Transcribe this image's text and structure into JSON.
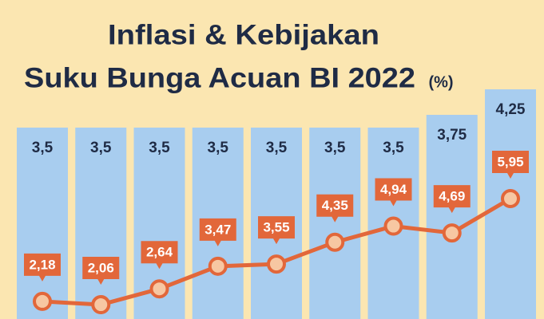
{
  "chart_data": {
    "type": "bar",
    "title_lines": [
      "Inflasi & Kebijakan",
      "Suku Bunga Acuan BI 2022"
    ],
    "unit": "(%)",
    "categories": [
      null,
      null,
      null,
      null,
      null,
      null,
      null,
      null,
      null
    ],
    "series": [
      {
        "type": "bar",
        "color": "#a8cdef",
        "values": [
          3.5,
          3.5,
          3.5,
          3.5,
          3.5,
          3.5,
          3.5,
          3.75,
          4.25
        ],
        "value_labels": [
          "3,5",
          "3,5",
          "3,5",
          "3,5",
          "3,5",
          "3,5",
          "3,5",
          "3,75",
          "4,25"
        ]
      },
      {
        "type": "line",
        "color": "#e2673a",
        "values": [
          2.18,
          2.06,
          2.64,
          3.47,
          3.55,
          4.35,
          4.94,
          4.69,
          5.95
        ],
        "value_labels": [
          "2,18",
          "2,06",
          "2,64",
          "3,47",
          "3,55",
          "4,35",
          "4,94",
          "4,69",
          "5,95"
        ]
      }
    ]
  }
}
